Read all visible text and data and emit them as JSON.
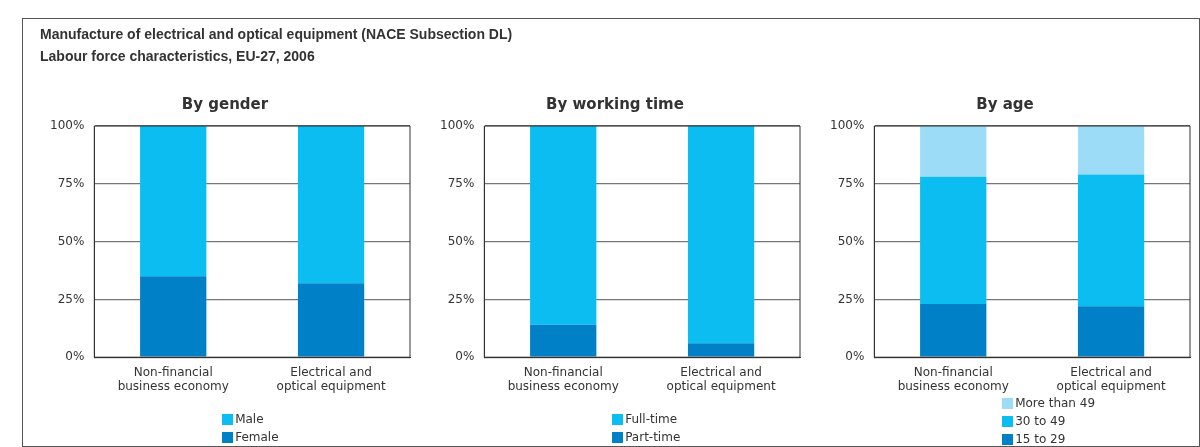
{
  "chart_data": [
    {
      "type": "other",
      "title": "Manufacture of electrical and optical equipment (NACE Subsection DL)",
      "subtitle": "Labour force characteristics, EU-27, 2006"
    },
    {
      "type": "bar",
      "title": "By gender",
      "stacked": true,
      "categories": [
        "Non-financial business economy",
        "Electrical and optical equipment"
      ],
      "series": [
        {
          "name": "Female",
          "color": "#0080c6",
          "values": [
            35,
            32
          ]
        },
        {
          "name": "Male",
          "color": "#0bbdf0",
          "values": [
            65,
            68
          ]
        }
      ],
      "ylim": [
        0,
        100
      ],
      "yticks": [
        {
          "value": 0,
          "label": "0%"
        },
        {
          "value": 25,
          "label": "25%"
        },
        {
          "value": 50,
          "label": "50%"
        },
        {
          "value": 75,
          "label": "75%"
        },
        {
          "value": 100,
          "label": "100%"
        }
      ],
      "grid": "y",
      "legend": "bottom"
    },
    {
      "type": "bar",
      "title": "By working time",
      "stacked": true,
      "categories": [
        "Non-financial business economy",
        "Electrical and optical equipment"
      ],
      "series": [
        {
          "name": "Part-time",
          "color": "#0080c6",
          "values": [
            14,
            6
          ]
        },
        {
          "name": "Full-time",
          "color": "#0bbdf0",
          "values": [
            86,
            94
          ]
        }
      ],
      "ylim": [
        0,
        100
      ],
      "yticks": [
        {
          "value": 0,
          "label": "0%"
        },
        {
          "value": 25,
          "label": "25%"
        },
        {
          "value": 50,
          "label": "50%"
        },
        {
          "value": 75,
          "label": "75%"
        },
        {
          "value": 100,
          "label": "100%"
        }
      ],
      "grid": "y",
      "legend": "bottom"
    },
    {
      "type": "bar",
      "title": "By age",
      "stacked": true,
      "categories": [
        "Non-financial business economy",
        "Electrical and optical equipment"
      ],
      "series": [
        {
          "name": "15 to 29",
          "color": "#0080c6",
          "values": [
            23,
            22
          ]
        },
        {
          "name": "30 to 49",
          "color": "#0bbdf0",
          "values": [
            55,
            57
          ]
        },
        {
          "name": "More than 49",
          "color": "#9ddcf7",
          "values": [
            22,
            21
          ]
        }
      ],
      "ylim": [
        0,
        100
      ],
      "yticks": [
        {
          "value": 0,
          "label": "0%"
        },
        {
          "value": 25,
          "label": "25%"
        },
        {
          "value": 50,
          "label": "50%"
        },
        {
          "value": 75,
          "label": "75%"
        },
        {
          "value": 100,
          "label": "100%"
        }
      ],
      "grid": "y",
      "legend": "bottom"
    }
  ]
}
